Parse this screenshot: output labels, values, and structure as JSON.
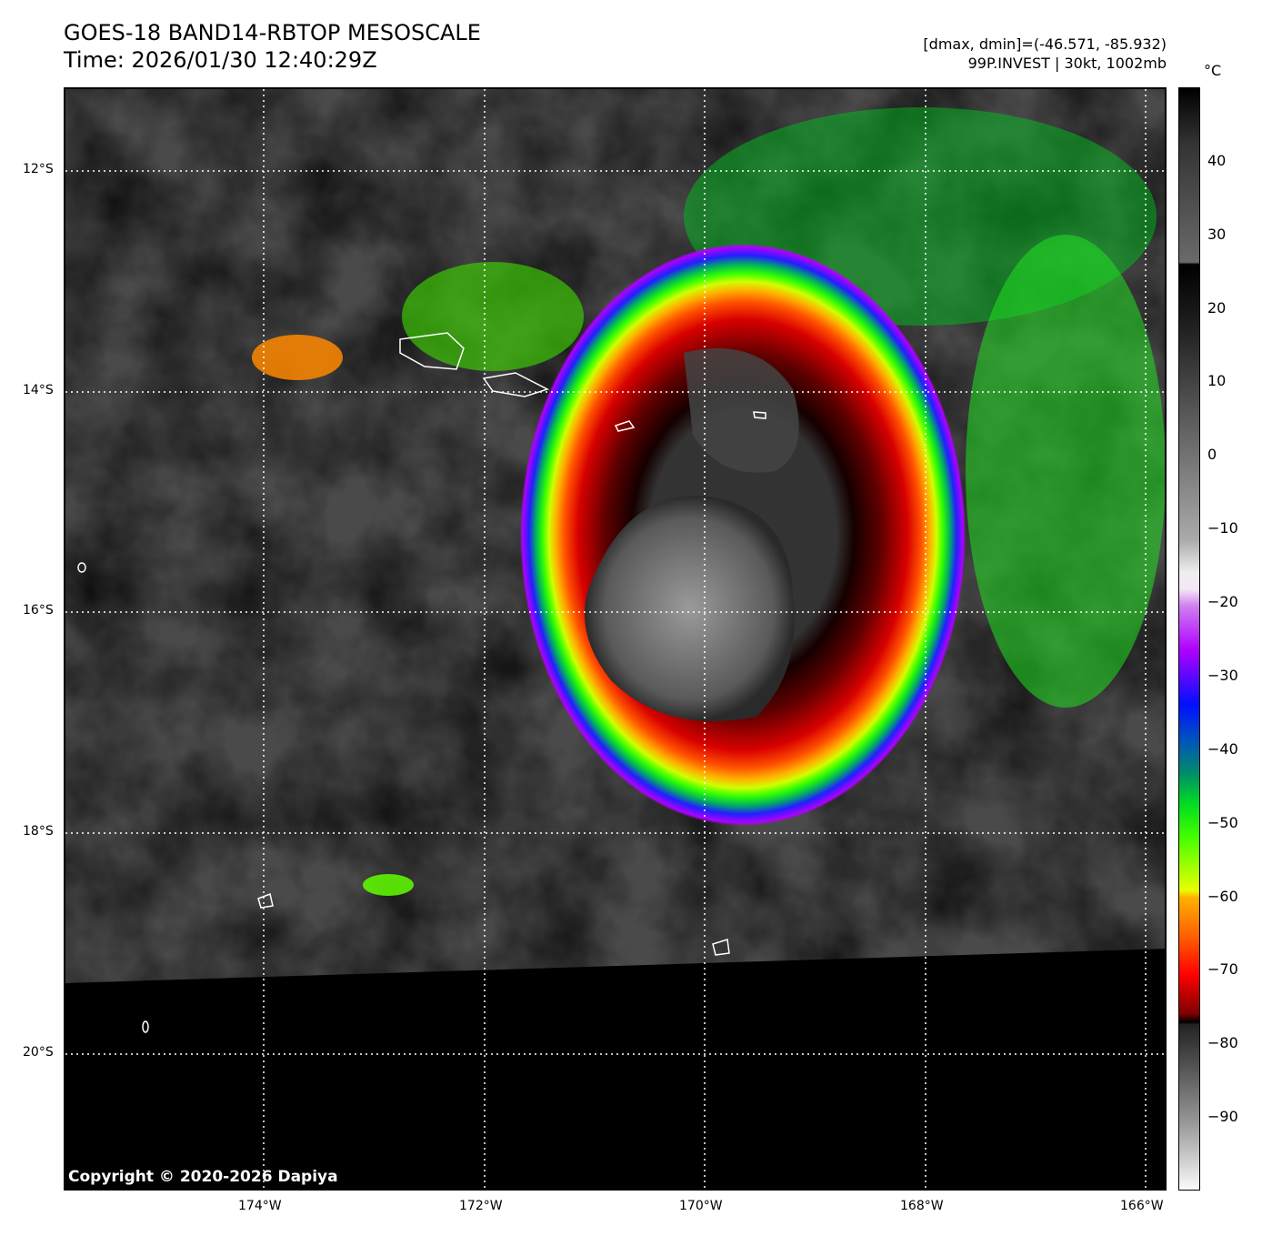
{
  "header": {
    "title": "GOES-18 BAND14-RBTOP MESOSCALE",
    "time": "Time: 2026/01/30 12:40:29Z",
    "range": "[dmax, dmin]=(-46.571, -85.932)",
    "storm": "99P.INVEST | 30kt, 1002mb"
  },
  "axes": {
    "lat_labels": [
      "12°S",
      "14°S",
      "16°S",
      "18°S",
      "20°S"
    ],
    "lon_labels": [
      "174°W",
      "172°W",
      "170°W",
      "168°W",
      "166°W"
    ]
  },
  "colorbar": {
    "unit": "°C",
    "min": -100,
    "max": 50,
    "ticks": [
      "40",
      "30",
      "20",
      "10",
      "0",
      "−10",
      "−20",
      "−30",
      "−40",
      "−50",
      "−60",
      "−70",
      "−80",
      "−90"
    ],
    "tick_values": [
      40,
      30,
      20,
      10,
      0,
      -10,
      -20,
      -30,
      -40,
      -50,
      -60,
      -70,
      -80,
      -90
    ]
  },
  "copyright": "Copyright © 2020-2026 Dapiya"
}
